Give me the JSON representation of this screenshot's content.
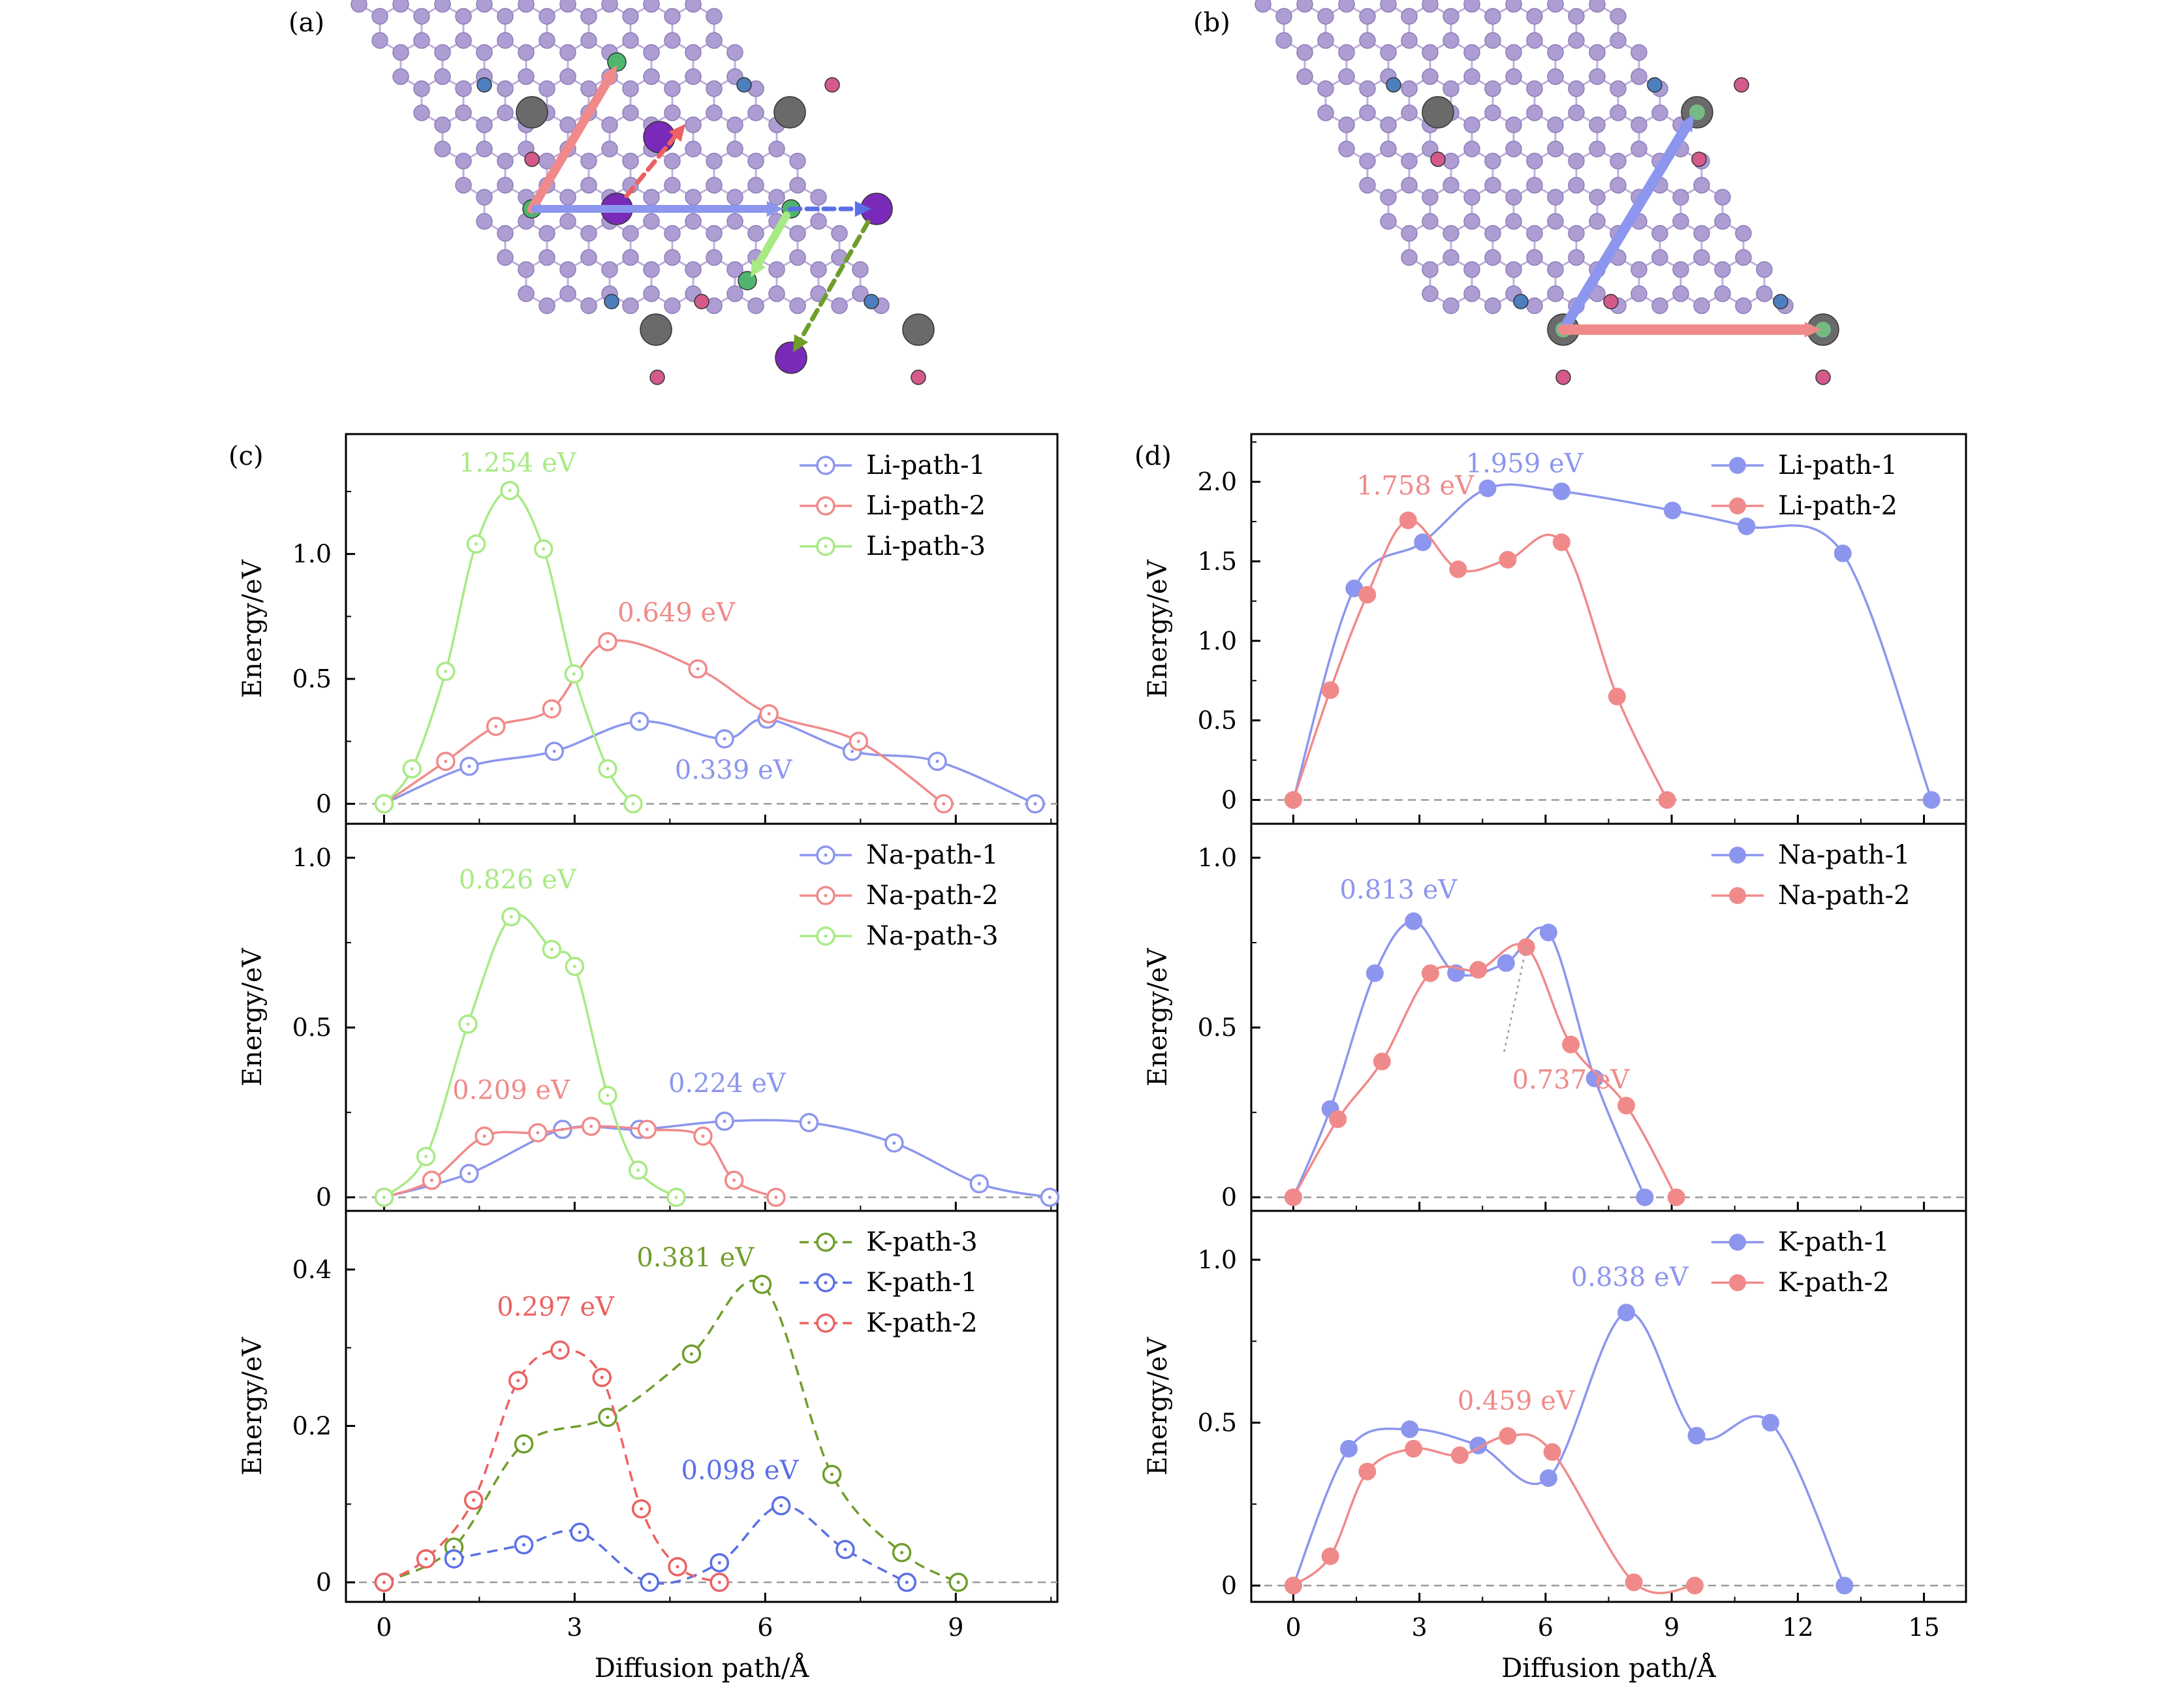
{
  "panel_labels": {
    "a": "(a)",
    "b": "(b)",
    "c": "(c)",
    "d": "(d)"
  },
  "colors": {
    "blue": "#8c96ee",
    "red": "#f08a8a",
    "green": "#a8ea84",
    "darkgreen": "#6f9e2a",
    "kblue": "#5a6fe6",
    "kred": "#ec6161",
    "lattice": "#b7a8d8",
    "carbon": "#8a8a8a"
  },
  "structure_a": {
    "arrows": [
      "pink-solid",
      "red-dashed",
      "blue-solid",
      "blue-dashed",
      "green-solid",
      "green-dashed"
    ]
  },
  "structure_b": {
    "arrows": [
      "blue-solid",
      "pink-solid"
    ]
  },
  "chart_data": [
    {
      "id": "c1",
      "type": "line",
      "ylabel": "Energy/eV",
      "xlim": [
        -0.6,
        10.6
      ],
      "ylim": [
        -0.08,
        1.48
      ],
      "yticks": [
        0,
        0.5,
        1.0
      ],
      "ytick_labels": [
        "0",
        "0.5",
        "1.0"
      ],
      "series": [
        {
          "name": "Li-path-1",
          "color": "#8c96ee",
          "dashed": false,
          "filled": false,
          "x": [
            0,
            1.34,
            2.68,
            4.02,
            5.36,
            6.03,
            7.37,
            8.71,
            10.25
          ],
          "y": [
            0,
            0.15,
            0.21,
            0.33,
            0.26,
            0.339,
            0.21,
            0.17,
            0
          ]
        },
        {
          "name": "Li-path-2",
          "color": "#f08a8a",
          "dashed": false,
          "filled": false,
          "x": [
            0,
            0.97,
            1.76,
            2.64,
            3.52,
            4.94,
            6.06,
            7.47,
            8.81
          ],
          "y": [
            0,
            0.17,
            0.31,
            0.38,
            0.649,
            0.54,
            0.36,
            0.25,
            0
          ]
        },
        {
          "name": "Li-path-3",
          "color": "#a8ea84",
          "dashed": false,
          "filled": false,
          "x": [
            0,
            0.44,
            0.97,
            1.45,
            1.98,
            2.51,
            2.99,
            3.52,
            3.92
          ],
          "y": [
            0,
            0.14,
            0.53,
            1.04,
            1.254,
            1.02,
            0.52,
            0.14,
            0
          ]
        }
      ],
      "annotations": [
        {
          "text": "1.254 eV",
          "x": 2.1,
          "y": 1.33,
          "color": "#a8ea84"
        },
        {
          "text": "0.649 eV",
          "x": 4.6,
          "y": 0.73,
          "color": "#f08a8a"
        },
        {
          "text": "0.339 eV",
          "x": 5.5,
          "y": 0.1,
          "color": "#8c96ee"
        }
      ]
    },
    {
      "id": "c2",
      "type": "line",
      "ylabel": "Energy/eV",
      "xlim": [
        -0.6,
        10.6
      ],
      "ylim": [
        -0.04,
        1.1
      ],
      "yticks": [
        0,
        0.5,
        1.0
      ],
      "ytick_labels": [
        "0",
        "0.5",
        "1.0"
      ],
      "series": [
        {
          "name": "Na-path-1",
          "color": "#8c96ee",
          "dashed": false,
          "filled": false,
          "x": [
            0,
            1.34,
            2.81,
            4.02,
            5.36,
            6.69,
            8.03,
            9.37,
            10.48
          ],
          "y": [
            0,
            0.07,
            0.2,
            0.2,
            0.224,
            0.22,
            0.16,
            0.04,
            0
          ]
        },
        {
          "name": "Na-path-2",
          "color": "#f08a8a",
          "dashed": false,
          "filled": false,
          "x": [
            0,
            0.75,
            1.58,
            2.42,
            3.26,
            4.14,
            5.02,
            5.51,
            6.17
          ],
          "y": [
            0,
            0.05,
            0.18,
            0.19,
            0.209,
            0.2,
            0.18,
            0.05,
            0
          ]
        },
        {
          "name": "Na-path-3",
          "color": "#a8ea84",
          "dashed": false,
          "filled": false,
          "x": [
            0,
            0.66,
            1.32,
            2.0,
            2.64,
            3.0,
            3.52,
            4.0,
            4.6
          ],
          "y": [
            0,
            0.12,
            0.51,
            0.826,
            0.73,
            0.68,
            0.3,
            0.08,
            0
          ]
        }
      ],
      "annotations": [
        {
          "text": "0.826 eV",
          "x": 2.1,
          "y": 0.91,
          "color": "#a8ea84"
        },
        {
          "text": "0.209 eV",
          "x": 2.0,
          "y": 0.29,
          "color": "#f08a8a"
        },
        {
          "text": "0.224 eV",
          "x": 5.4,
          "y": 0.31,
          "color": "#8c96ee"
        }
      ]
    },
    {
      "id": "c3",
      "type": "line",
      "ylabel": "Energy/eV",
      "xlabel": "Diffusion path/Å",
      "xlim": [
        -0.6,
        10.6
      ],
      "ylim": [
        -0.025,
        0.475
      ],
      "yticks": [
        0,
        0.2,
        0.4
      ],
      "ytick_labels": [
        "0",
        "0.2",
        "0.4"
      ],
      "xticks": [
        0,
        3,
        6,
        9
      ],
      "xtick_labels": [
        "0",
        "3",
        "6",
        "9"
      ],
      "series": [
        {
          "name": "K-path-3",
          "color": "#6f9e2a",
          "dashed": true,
          "filled": false,
          "x": [
            0,
            1.1,
            2.2,
            3.52,
            4.84,
            5.95,
            7.05,
            8.15,
            9.04
          ],
          "y": [
            0,
            0.045,
            0.177,
            0.211,
            0.292,
            0.381,
            0.138,
            0.038,
            0
          ]
        },
        {
          "name": "K-path-1",
          "color": "#5a6fe6",
          "dashed": true,
          "filled": false,
          "x": [
            1.1,
            2.2,
            3.08,
            4.18,
            5.28,
            6.25,
            7.26,
            8.23
          ],
          "y": [
            0.03,
            0.048,
            0.064,
            0,
            0.025,
            0.098,
            0.042,
            0
          ]
        },
        {
          "name": "K-path-2",
          "color": "#ec6161",
          "dashed": true,
          "filled": false,
          "x": [
            0,
            0.66,
            1.41,
            2.11,
            2.77,
            3.43,
            4.05,
            4.62,
            5.28
          ],
          "y": [
            0,
            0.03,
            0.105,
            0.258,
            0.297,
            0.262,
            0.094,
            0.02,
            0
          ]
        }
      ],
      "annotations": [
        {
          "text": "0.381 eV",
          "x": 4.9,
          "y": 0.404,
          "color": "#6f9e2a"
        },
        {
          "text": "0.297 eV",
          "x": 2.7,
          "y": 0.341,
          "color": "#ec6161"
        },
        {
          "text": "0.098 eV",
          "x": 5.6,
          "y": 0.132,
          "color": "#5a6fe6"
        }
      ]
    },
    {
      "id": "d1",
      "type": "line",
      "ylabel": "Energy/eV",
      "xlim": [
        -1.0,
        16.0
      ],
      "ylim": [
        -0.15,
        2.3
      ],
      "yticks": [
        0,
        0.5,
        1.0,
        1.5,
        2.0
      ],
      "ytick_labels": [
        "0",
        "0.5",
        "1.0",
        "1.5",
        "2.0"
      ],
      "series": [
        {
          "name": "Li-path-1",
          "color": "#8c96ee",
          "dashed": false,
          "filled": true,
          "x": [
            0,
            1.45,
            3.08,
            4.62,
            6.38,
            9.02,
            10.78,
            13.07,
            15.18
          ],
          "y": [
            0,
            1.33,
            1.62,
            1.959,
            1.94,
            1.82,
            1.72,
            1.55,
            0
          ]
        },
        {
          "name": "Li-path-2",
          "color": "#f08a8a",
          "dashed": false,
          "filled": true,
          "x": [
            0,
            0.88,
            1.76,
            2.73,
            3.92,
            5.1,
            6.38,
            7.7,
            8.89
          ],
          "y": [
            0,
            0.69,
            1.29,
            1.758,
            1.45,
            1.51,
            1.62,
            0.65,
            0
          ]
        }
      ],
      "annotations": [
        {
          "text": "1.959 eV",
          "x": 5.5,
          "y": 2.06,
          "color": "#8c96ee"
        },
        {
          "text": "1.758 eV",
          "x": 2.9,
          "y": 1.92,
          "color": "#f08a8a"
        }
      ]
    },
    {
      "id": "d2",
      "type": "line",
      "ylabel": "Energy/eV",
      "xlim": [
        -1.0,
        16.0
      ],
      "ylim": [
        -0.04,
        1.1
      ],
      "yticks": [
        0,
        0.5,
        1.0
      ],
      "ytick_labels": [
        "0",
        "0.5",
        "1.0"
      ],
      "series": [
        {
          "name": "Na-path-1",
          "color": "#8c96ee",
          "dashed": false,
          "filled": true,
          "x": [
            0,
            0.88,
            1.94,
            2.86,
            3.87,
            5.06,
            6.07,
            7.17,
            8.36
          ],
          "y": [
            0,
            0.26,
            0.66,
            0.813,
            0.66,
            0.69,
            0.78,
            0.35,
            0
          ]
        },
        {
          "name": "Na-path-2",
          "color": "#f08a8a",
          "dashed": false,
          "filled": true,
          "x": [
            0,
            1.06,
            2.11,
            3.26,
            4.4,
            5.54,
            6.6,
            7.92,
            9.11
          ],
          "y": [
            0,
            0.23,
            0.4,
            0.66,
            0.67,
            0.737,
            0.45,
            0.27,
            0
          ]
        }
      ],
      "annotations": [
        {
          "text": "0.813 eV",
          "x": 2.5,
          "y": 0.88,
          "color": "#8c96ee"
        },
        {
          "text": "0.737 eV",
          "x": 6.6,
          "y": 0.32,
          "color": "#f08a8a"
        }
      ],
      "leader": {
        "from": [
          5.54,
          0.737
        ],
        "to": [
          5.0,
          0.42
        ]
      }
    },
    {
      "id": "d3",
      "type": "line",
      "ylabel": "Energy/eV",
      "xlabel": "Diffusion path/Å",
      "xlim": [
        -1.0,
        16.0
      ],
      "ylim": [
        -0.05,
        1.15
      ],
      "yticks": [
        0,
        0.5,
        1.0
      ],
      "ytick_labels": [
        "0",
        "0.5",
        "1.0"
      ],
      "xticks": [
        0,
        3,
        6,
        9,
        12,
        15
      ],
      "xtick_labels": [
        "0",
        "3",
        "6",
        "9",
        "12",
        "15"
      ],
      "series": [
        {
          "name": "K-path-1",
          "color": "#8c96ee",
          "dashed": false,
          "filled": true,
          "x": [
            0,
            1.32,
            2.77,
            4.4,
            6.07,
            7.92,
            9.59,
            11.35,
            13.11
          ],
          "y": [
            0,
            0.42,
            0.48,
            0.43,
            0.33,
            0.838,
            0.46,
            0.5,
            0
          ]
        },
        {
          "name": "K-path-2",
          "color": "#f08a8a",
          "dashed": false,
          "filled": true,
          "x": [
            0,
            0.88,
            1.76,
            2.86,
            3.96,
            5.1,
            6.16,
            8.1,
            9.55
          ],
          "y": [
            0,
            0.09,
            0.35,
            0.42,
            0.4,
            0.459,
            0.41,
            0.01,
            0
          ]
        }
      ],
      "annotations": [
        {
          "text": "0.838 eV",
          "x": 8.0,
          "y": 0.92,
          "color": "#8c96ee"
        },
        {
          "text": "0.459 eV",
          "x": 5.3,
          "y": 0.54,
          "color": "#f08a8a"
        }
      ]
    }
  ]
}
